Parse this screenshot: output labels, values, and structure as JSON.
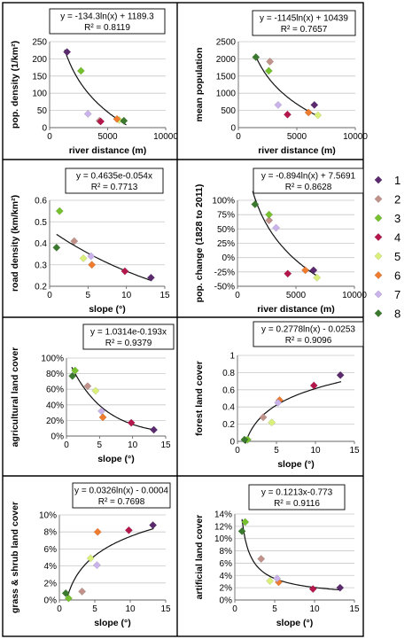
{
  "chart_data": [
    {
      "type": "scatter",
      "equation": "y = -134.3ln(x) + 1189.3",
      "r2": "R² = 0.8119",
      "xlabel": "river distance (m)",
      "ylabel": "pop. density (1/km²)",
      "xlim": [
        0,
        10000
      ],
      "ylim": [
        0,
        250
      ],
      "xticks": [
        "0",
        "5000",
        "10000"
      ],
      "yticks": [
        "0",
        "50",
        "100",
        "150",
        "200",
        "250"
      ],
      "points": [
        [
          1500,
          220
        ],
        [
          4300,
          20
        ],
        [
          2700,
          165
        ],
        [
          4400,
          18
        ],
        [
          6000,
          22
        ],
        [
          5800,
          25
        ],
        [
          3300,
          40
        ],
        [
          6400,
          20
        ]
      ],
      "trend": "log",
      "a": -134.3,
      "b": 1189.3,
      "trend_range": [
        1300,
        6600
      ]
    },
    {
      "type": "scatter",
      "equation": "y = -1145ln(x) + 10439",
      "r2": "R² = 0.7657",
      "xlabel": "river distance (m)",
      "ylabel": "mean population",
      "xlim": [
        0,
        10000
      ],
      "ylim": [
        0,
        2500
      ],
      "xticks": [
        "0",
        "5000",
        "10000"
      ],
      "yticks": [
        "0",
        "500",
        "1000",
        "1500",
        "2000",
        "2500"
      ],
      "points": [
        [
          6500,
          660
        ],
        [
          2700,
          1920
        ],
        [
          2600,
          1650
        ],
        [
          4200,
          380
        ],
        [
          6800,
          360
        ],
        [
          6000,
          440
        ],
        [
          3400,
          660
        ],
        [
          1500,
          2050
        ]
      ],
      "trend": "log",
      "a": -1145,
      "b": 10439,
      "trend_range": [
        1500,
        6800
      ]
    },
    {
      "type": "scatter",
      "equation": "y = 0.4635e-0.054x",
      "r2": "R² = 0.7713",
      "xlabel": "slope (°)",
      "ylabel": "road density (km/km²)",
      "xlim": [
        0,
        15
      ],
      "ylim": [
        0.2,
        0.6
      ],
      "xticks": [
        "0",
        "5",
        "10",
        "15"
      ],
      "yticks": [
        "0.2",
        "0.3",
        "0.4",
        "0.5",
        "0.6"
      ],
      "points": [
        [
          13.2,
          0.24
        ],
        [
          3.2,
          0.41
        ],
        [
          1.3,
          0.55
        ],
        [
          9.8,
          0.27
        ],
        [
          4.4,
          0.33
        ],
        [
          5.5,
          0.3
        ],
        [
          5.4,
          0.34
        ],
        [
          0.9,
          0.38
        ]
      ],
      "trend": "exp",
      "a": 0.4635,
      "b": -0.054,
      "trend_range": [
        0.9,
        13.3
      ]
    },
    {
      "type": "scatter",
      "equation": "y = -0.894ln(x) + 7.5691",
      "r2": "R² = 0.8628",
      "xlabel": "river distance (m)",
      "ylabel": "pop. change (1828 to 2011)",
      "xlim": [
        0,
        10000
      ],
      "ylim": [
        -50,
        100
      ],
      "xticks": [
        "0",
        "5000",
        "10000"
      ],
      "yticks": [
        "-50%",
        "-25%",
        "0%",
        "25%",
        "50%",
        "75%",
        "100%"
      ],
      "points": [
        [
          6500,
          -22
        ],
        [
          2700,
          65
        ],
        [
          2700,
          75
        ],
        [
          4300,
          -28
        ],
        [
          6800,
          -35
        ],
        [
          5800,
          -22
        ],
        [
          3300,
          52
        ],
        [
          1500,
          93
        ]
      ],
      "trend": "logpct",
      "a": -0.894,
      "b": 7.5691,
      "trend_range": [
        1300,
        6900
      ]
    },
    {
      "type": "scatter",
      "equation": "y = 1.0314e-0.193x",
      "r2": "R² = 0.9379",
      "xlabel": "slope (°)",
      "ylabel": "agricultural land cover",
      "xlim": [
        0,
        15
      ],
      "ylim": [
        0,
        100
      ],
      "xticks": [
        "0",
        "5",
        "10",
        "15"
      ],
      "yticks": [
        "0%",
        "20%",
        "40%",
        "60%",
        "80%",
        "100%"
      ],
      "points": [
        [
          13.2,
          8
        ],
        [
          3.2,
          64
        ],
        [
          1.3,
          84
        ],
        [
          9.8,
          17
        ],
        [
          4.4,
          58
        ],
        [
          5.5,
          24
        ],
        [
          5.3,
          32
        ],
        [
          0.9,
          77
        ]
      ],
      "trend": "exppct",
      "a": 1.0314,
      "b": -0.193,
      "trend_range": [
        0.8,
        13.3
      ]
    },
    {
      "type": "scatter",
      "equation": "y = 0.2778ln(x) - 0.0253",
      "r2": "R² = 0.9096",
      "xlabel": "slope (°)",
      "ylabel": "forest land cover",
      "xlim": [
        0,
        15
      ],
      "ylim": [
        0,
        1
      ],
      "xticks": [
        "0",
        "5",
        "10",
        "15"
      ],
      "yticks": [
        "0",
        "0.2",
        "0.4",
        "0.6",
        "0.8",
        "1"
      ],
      "points": [
        [
          13.2,
          0.77
        ],
        [
          3.3,
          0.28
        ],
        [
          1.3,
          0.02
        ],
        [
          9.8,
          0.65
        ],
        [
          4.4,
          0.22
        ],
        [
          5.4,
          0.48
        ],
        [
          5.2,
          0.45
        ],
        [
          0.9,
          0.02
        ]
      ],
      "trend": "log",
      "a": 0.2778,
      "b": -0.0253,
      "trend_range": [
        1.0,
        13.3
      ]
    },
    {
      "type": "scatter",
      "equation": "y = 0.0326ln(x) - 0.0004",
      "r2": "R² = 0.7698",
      "xlabel": "slope (°)",
      "ylabel": "grass & shrub land cover",
      "xlim": [
        0,
        15
      ],
      "ylim": [
        0,
        10
      ],
      "xticks": [
        "0",
        "5",
        "10",
        "15"
      ],
      "yticks": [
        "0%",
        "2%",
        "4%",
        "6%",
        "8%",
        "10%"
      ],
      "points": [
        [
          13.2,
          8.8
        ],
        [
          3.2,
          1.0
        ],
        [
          1.3,
          0.2
        ],
        [
          9.8,
          8.2
        ],
        [
          4.4,
          4.9
        ],
        [
          5.4,
          8.0
        ],
        [
          5.3,
          4.1
        ],
        [
          0.9,
          0.8
        ]
      ],
      "trend": "logpct",
      "a": 0.0326,
      "b": -0.0004,
      "trend_range": [
        1.05,
        13.3
      ]
    },
    {
      "type": "scatter",
      "equation": "y = 0.1213x-0.773",
      "r2": "R² = 0.9116",
      "xlabel": "slope (°)",
      "ylabel": "artificial land cover",
      "xlim": [
        0,
        15
      ],
      "ylim": [
        0,
        14
      ],
      "xticks": [
        "0",
        "5",
        "10",
        "15"
      ],
      "yticks": [
        "0%",
        "2%",
        "4%",
        "6%",
        "8%",
        "10%",
        "12%",
        "14%"
      ],
      "points": [
        [
          13.2,
          2.0
        ],
        [
          3.3,
          6.7
        ],
        [
          1.3,
          12.7
        ],
        [
          9.8,
          1.8
        ],
        [
          4.4,
          3.1
        ],
        [
          5.5,
          2.9
        ],
        [
          5.3,
          3.5
        ],
        [
          0.9,
          11.2
        ]
      ],
      "trend": "powpct",
      "a": 0.1213,
      "b": -0.773,
      "trend_range": [
        0.9,
        13.3
      ]
    }
  ],
  "legend": {
    "labels": [
      "1",
      "2",
      "3",
      "4",
      "5",
      "6",
      "7",
      "8"
    ],
    "colors": [
      "#5b2a6e",
      "#c0928a",
      "#76c12e",
      "#b5174d",
      "#d9f07a",
      "#ee7b2e",
      "#c9b3ea",
      "#3b7a2e"
    ]
  }
}
